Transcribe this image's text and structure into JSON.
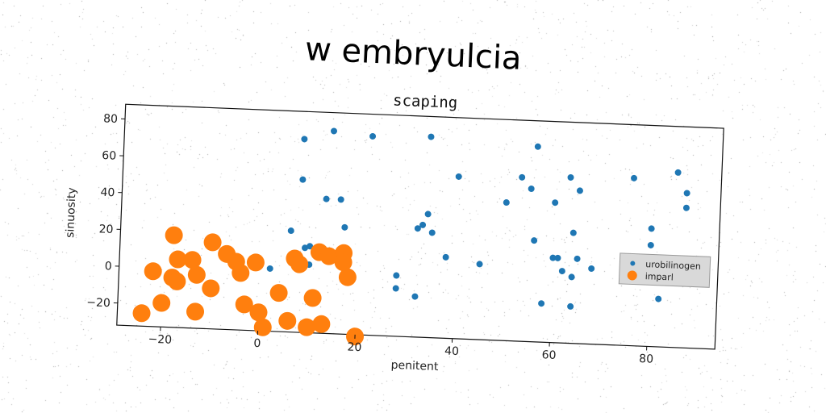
{
  "suptitle": "w embryulcia",
  "chart_data": {
    "type": "scatter",
    "title": "scaping",
    "xlabel": "penitent",
    "ylabel": "sinuosity",
    "xlim": [
      -29,
      94
    ],
    "ylim": [
      -32,
      88
    ],
    "xticks": [
      -20,
      0,
      20,
      40,
      60,
      80
    ],
    "yticks": [
      -20,
      0,
      20,
      40,
      60,
      80
    ],
    "xtick_labels": [
      "−20",
      "0",
      "20",
      "40",
      "60",
      "80"
    ],
    "ytick_labels": [
      "−20",
      "0",
      "20",
      "40",
      "60",
      "80"
    ],
    "legend_position": "center-right",
    "grid": false,
    "series": [
      {
        "name": "urobilinogen",
        "color": "#1f77b4",
        "size": "small",
        "points": [
          [
            8,
            73
          ],
          [
            14,
            78
          ],
          [
            22,
            76
          ],
          [
            34,
            77
          ],
          [
            56,
            74
          ],
          [
            8,
            51
          ],
          [
            13,
            41
          ],
          [
            16,
            41
          ],
          [
            17,
            26
          ],
          [
            6,
            23
          ],
          [
            9,
            14
          ],
          [
            10,
            15
          ],
          [
            2,
            2
          ],
          [
            10,
            5
          ],
          [
            40,
            56
          ],
          [
            53,
            57
          ],
          [
            55,
            51
          ],
          [
            50,
            43
          ],
          [
            34,
            35
          ],
          [
            33,
            29
          ],
          [
            32,
            27
          ],
          [
            35,
            25
          ],
          [
            38,
            12
          ],
          [
            45,
            9
          ],
          [
            28,
            1
          ],
          [
            28,
            -6
          ],
          [
            32,
            -10
          ],
          [
            56,
            23
          ],
          [
            60,
            44
          ],
          [
            63,
            58
          ],
          [
            65,
            51
          ],
          [
            64,
            28
          ],
          [
            60,
            14
          ],
          [
            61,
            14
          ],
          [
            65,
            14
          ],
          [
            62,
            7
          ],
          [
            64,
            4
          ],
          [
            58,
            -11
          ],
          [
            64,
            -12
          ],
          [
            68,
            9
          ],
          [
            76,
            59
          ],
          [
            85,
            63
          ],
          [
            87,
            52
          ],
          [
            87,
            44
          ],
          [
            80,
            32
          ],
          [
            80,
            23
          ],
          [
            75,
            9
          ],
          [
            82,
            -6
          ]
        ]
      },
      {
        "name": "imparl",
        "color": "#ff7f0e",
        "size": "large",
        "points": [
          [
            -18,
            18
          ],
          [
            -17,
            5
          ],
          [
            -14,
            5
          ],
          [
            -10,
            15
          ],
          [
            -7,
            9
          ],
          [
            -5,
            5
          ],
          [
            -1,
            5
          ],
          [
            -4,
            -1
          ],
          [
            -13,
            -3
          ],
          [
            -18,
            -5
          ],
          [
            -17,
            -7
          ],
          [
            -22,
            -2
          ],
          [
            -10,
            -10
          ],
          [
            -20,
            -19
          ],
          [
            -24,
            -25
          ],
          [
            -13,
            -23
          ],
          [
            -3,
            -18
          ],
          [
            0,
            -22
          ],
          [
            1,
            -30
          ],
          [
            4,
            -11
          ],
          [
            6,
            -26
          ],
          [
            7,
            8
          ],
          [
            8,
            5
          ],
          [
            12,
            12
          ],
          [
            14,
            10
          ],
          [
            17,
            12
          ],
          [
            17,
            7
          ],
          [
            18,
            -1
          ],
          [
            11,
            -13
          ],
          [
            10,
            -29
          ],
          [
            13,
            -27
          ],
          [
            20,
            -33
          ]
        ]
      }
    ]
  }
}
